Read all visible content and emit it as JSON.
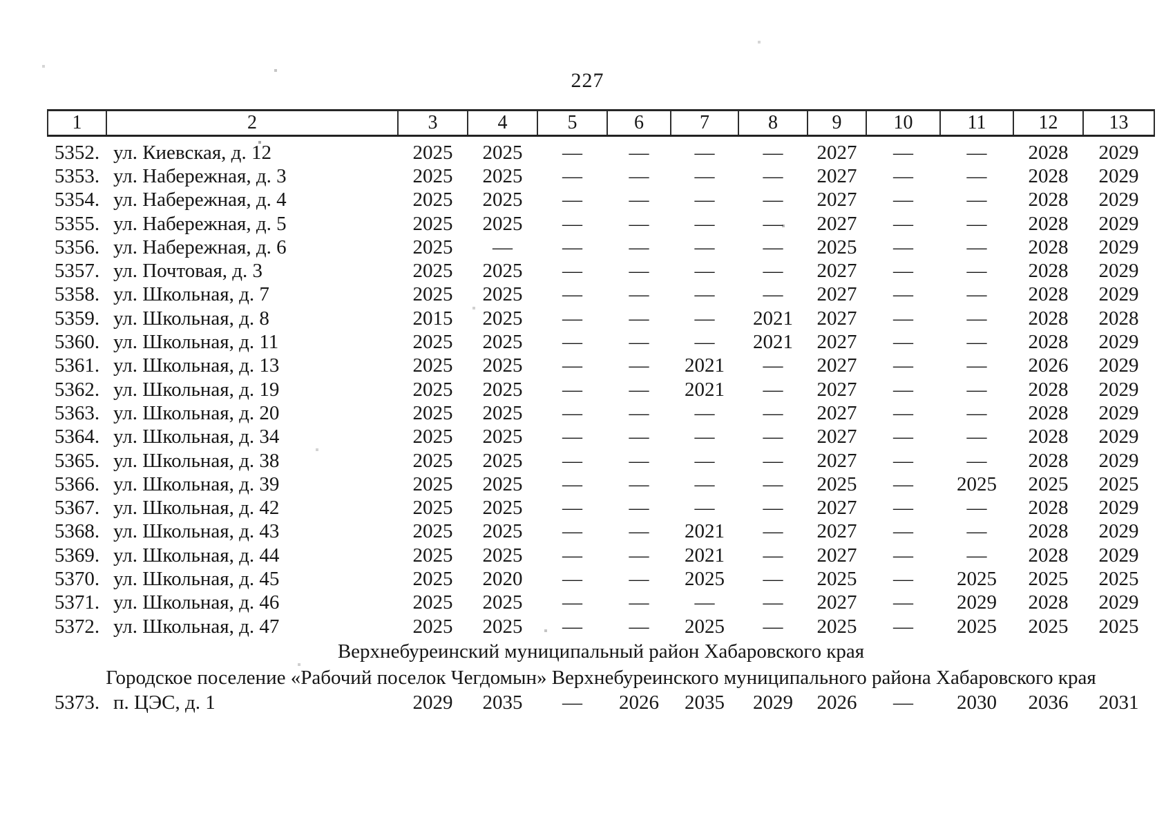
{
  "page": {
    "number": "227"
  },
  "table": {
    "header": [
      "1",
      "2",
      "3",
      "4",
      "5",
      "6",
      "7",
      "8",
      "9",
      "10",
      "11",
      "12",
      "13"
    ],
    "rows": [
      {
        "type": "data",
        "num": "5352.",
        "address": "ул. Киевская, д. 12",
        "cols": [
          "2025",
          "2025",
          "—",
          "—",
          "—",
          "—",
          "2027",
          "—",
          "—",
          "2028",
          "2029"
        ]
      },
      {
        "type": "data",
        "num": "5353.",
        "address": "ул. Набережная, д. 3",
        "cols": [
          "2025",
          "2025",
          "—",
          "—",
          "—",
          "—",
          "2027",
          "—",
          "—",
          "2028",
          "2029"
        ]
      },
      {
        "type": "data",
        "num": "5354.",
        "address": "ул. Набережная, д. 4",
        "cols": [
          "2025",
          "2025",
          "—",
          "—",
          "—",
          "—",
          "2027",
          "—",
          "—",
          "2028",
          "2029"
        ]
      },
      {
        "type": "data",
        "num": "5355.",
        "address": "ул. Набережная, д. 5",
        "cols": [
          "2025",
          "2025",
          "—",
          "—",
          "—",
          "—",
          "2027",
          "—",
          "—",
          "2028",
          "2029"
        ]
      },
      {
        "type": "data",
        "num": "5356.",
        "address": "ул. Набережная, д. 6",
        "cols": [
          "2025",
          "—",
          "—",
          "—",
          "—",
          "—",
          "2025",
          "—",
          "—",
          "2028",
          "2029"
        ]
      },
      {
        "type": "data",
        "num": "5357.",
        "address": "ул. Почтовая, д. 3",
        "cols": [
          "2025",
          "2025",
          "—",
          "—",
          "—",
          "—",
          "2027",
          "—",
          "—",
          "2028",
          "2029"
        ]
      },
      {
        "type": "data",
        "num": "5358.",
        "address": "ул. Школьная, д. 7",
        "cols": [
          "2025",
          "2025",
          "—",
          "—",
          "—",
          "—",
          "2027",
          "—",
          "—",
          "2028",
          "2029"
        ]
      },
      {
        "type": "data",
        "num": "5359.",
        "address": "ул. Школьная, д. 8",
        "cols": [
          "2015",
          "2025",
          "—",
          "—",
          "—",
          "2021",
          "2027",
          "—",
          "—",
          "2028",
          "2028"
        ]
      },
      {
        "type": "data",
        "num": "5360.",
        "address": "ул. Школьная, д. 11",
        "cols": [
          "2025",
          "2025",
          "—",
          "—",
          "—",
          "2021",
          "2027",
          "—",
          "—",
          "2028",
          "2029"
        ]
      },
      {
        "type": "data",
        "num": "5361.",
        "address": "ул. Школьная, д. 13",
        "cols": [
          "2025",
          "2025",
          "—",
          "—",
          "2021",
          "—",
          "2027",
          "—",
          "—",
          "2026",
          "2029"
        ]
      },
      {
        "type": "data",
        "num": "5362.",
        "address": "ул. Школьная, д. 19",
        "cols": [
          "2025",
          "2025",
          "—",
          "—",
          "2021",
          "—",
          "2027",
          "—",
          "—",
          "2028",
          "2029"
        ]
      },
      {
        "type": "data",
        "num": "5363.",
        "address": "ул. Школьная, д. 20",
        "cols": [
          "2025",
          "2025",
          "—",
          "—",
          "—",
          "—",
          "2027",
          "—",
          "—",
          "2028",
          "2029"
        ]
      },
      {
        "type": "data",
        "num": "5364.",
        "address": "ул. Школьная, д. 34",
        "cols": [
          "2025",
          "2025",
          "—",
          "—",
          "—",
          "—",
          "2027",
          "—",
          "—",
          "2028",
          "2029"
        ]
      },
      {
        "type": "data",
        "num": "5365.",
        "address": "ул. Школьная, д. 38",
        "cols": [
          "2025",
          "2025",
          "—",
          "—",
          "—",
          "—",
          "2027",
          "—",
          "—",
          "2028",
          "2029"
        ]
      },
      {
        "type": "data",
        "num": "5366.",
        "address": "ул. Школьная, д. 39",
        "cols": [
          "2025",
          "2025",
          "—",
          "—",
          "—",
          "—",
          "2025",
          "—",
          "2025",
          "2025",
          "2025"
        ]
      },
      {
        "type": "data",
        "num": "5367.",
        "address": "ул. Школьная, д. 42",
        "cols": [
          "2025",
          "2025",
          "—",
          "—",
          "—",
          "—",
          "2027",
          "—",
          "—",
          "2028",
          "2029"
        ]
      },
      {
        "type": "data",
        "num": "5368.",
        "address": "ул. Школьная, д. 43",
        "cols": [
          "2025",
          "2025",
          "—",
          "—",
          "2021",
          "—",
          "2027",
          "—",
          "—",
          "2028",
          "2029"
        ]
      },
      {
        "type": "data",
        "num": "5369.",
        "address": "ул. Школьная, д. 44",
        "cols": [
          "2025",
          "2025",
          "—",
          "—",
          "2021",
          "—",
          "2027",
          "—",
          "—",
          "2028",
          "2029"
        ]
      },
      {
        "type": "data",
        "num": "5370.",
        "address": "ул. Школьная, д. 45",
        "cols": [
          "2025",
          "2020",
          "—",
          "—",
          "2025",
          "—",
          "2025",
          "—",
          "2025",
          "2025",
          "2025"
        ]
      },
      {
        "type": "data",
        "num": "5371.",
        "address": "ул. Школьная, д. 46",
        "cols": [
          "2025",
          "2025",
          "—",
          "—",
          "—",
          "—",
          "2027",
          "—",
          "2029",
          "2028",
          "2029"
        ]
      },
      {
        "type": "data",
        "num": "5372.",
        "address": "ул. Школьная, д. 47",
        "cols": [
          "2025",
          "2025",
          "—",
          "—",
          "2025",
          "—",
          "2025",
          "—",
          "2025",
          "2025",
          "2025"
        ]
      },
      {
        "type": "section",
        "text": "Верхнебуреинский муниципальный район Хабаровского края"
      },
      {
        "type": "section",
        "text": "Городское поселение «Рабочий поселок Чегдомын» Верхнебуреинского муниципального района Хабаровского края"
      },
      {
        "type": "data",
        "num": "5373.",
        "address": "п. ЦЭС, д. 1",
        "cols": [
          "2029",
          "2035",
          "—",
          "2026",
          "2035",
          "2029",
          "2026",
          "—",
          "2030",
          "2036",
          "2031"
        ]
      }
    ]
  }
}
